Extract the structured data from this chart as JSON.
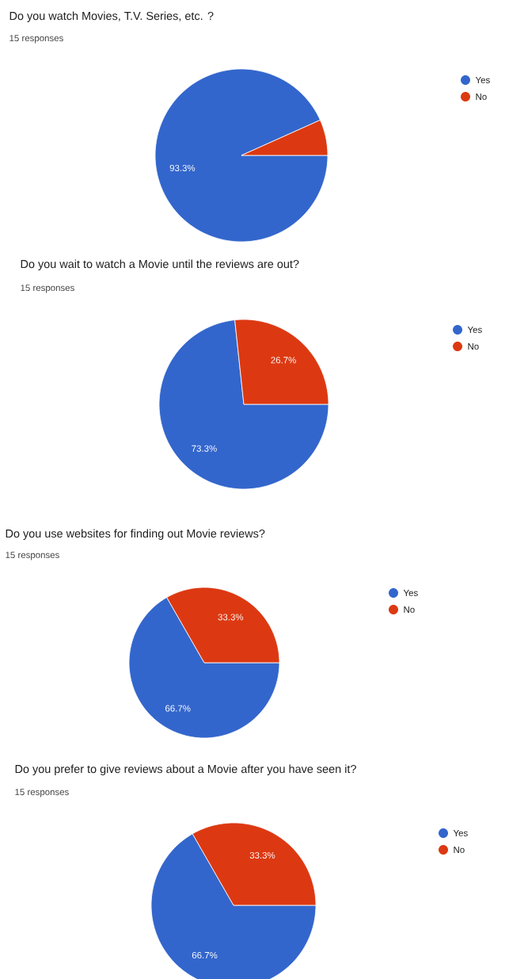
{
  "chart_data": [
    {
      "type": "pie",
      "title": "Do you watch Movies, T.V. Series, etc. ?",
      "subtitle": "15 responses",
      "categories": [
        "Yes",
        "No"
      ],
      "values": [
        93.3,
        6.7
      ],
      "colors": [
        "#3366cc",
        "#dc3912"
      ],
      "value_labels": [
        "93.3%",
        null
      ],
      "legend": "right"
    },
    {
      "type": "pie",
      "title": "Do you wait to watch a Movie until the reviews are out?",
      "subtitle": "15 responses",
      "categories": [
        "Yes",
        "No"
      ],
      "values": [
        73.3,
        26.7
      ],
      "colors": [
        "#3366cc",
        "#dc3912"
      ],
      "value_labels": [
        "73.3%",
        "26.7%"
      ],
      "legend": "right"
    },
    {
      "type": "pie",
      "title": "Do you use websites for finding out Movie reviews?",
      "subtitle": "15 responses",
      "categories": [
        "Yes",
        "No"
      ],
      "values": [
        66.7,
        33.3
      ],
      "colors": [
        "#3366cc",
        "#dc3912"
      ],
      "value_labels": [
        "66.7%",
        "33.3%"
      ],
      "legend": "right"
    },
    {
      "type": "pie",
      "title": "Do you prefer to give reviews about a Movie after you have seen it?",
      "subtitle": "15 responses",
      "categories": [
        "Yes",
        "No"
      ],
      "values": [
        66.7,
        33.3
      ],
      "colors": [
        "#3366cc",
        "#dc3912"
      ],
      "value_labels": [
        "66.7%",
        "33.3%"
      ],
      "legend": "right"
    }
  ]
}
